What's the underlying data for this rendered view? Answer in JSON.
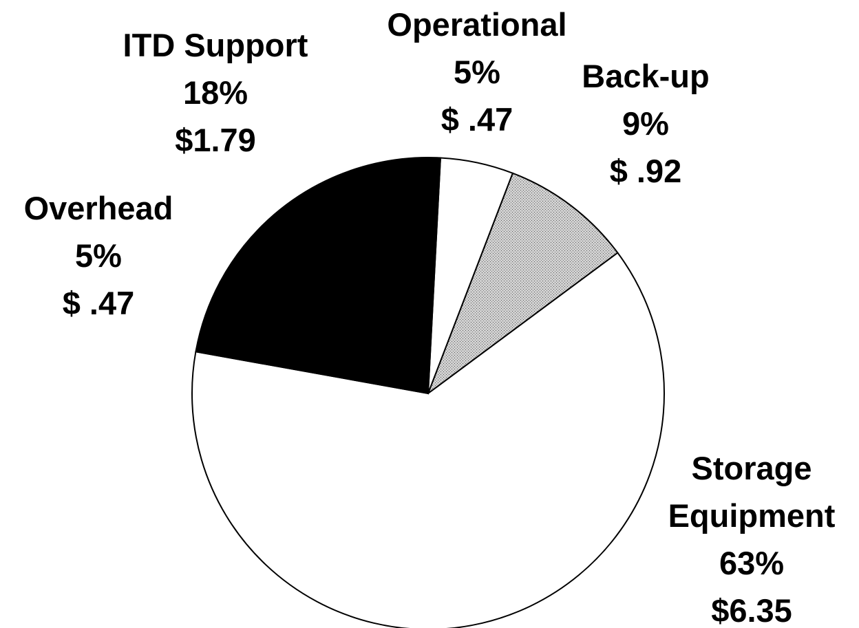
{
  "chart_data": {
    "type": "pie",
    "categories": [
      "Operational",
      "Back-up",
      "Storage Equipment",
      "Overhead",
      "ITD Support"
    ],
    "values": [
      5,
      9,
      63,
      5,
      18
    ],
    "value_labels": [
      "5%",
      "9%",
      "63%",
      "5%",
      "18%"
    ],
    "amount_labels": [
      "$ .47",
      "$ .92",
      "$6.35",
      "$ .47",
      "$1.79"
    ],
    "colors": [
      "#ffffff",
      "#bdbdbd",
      "#ffffff",
      "#000000",
      "#000000"
    ]
  }
}
